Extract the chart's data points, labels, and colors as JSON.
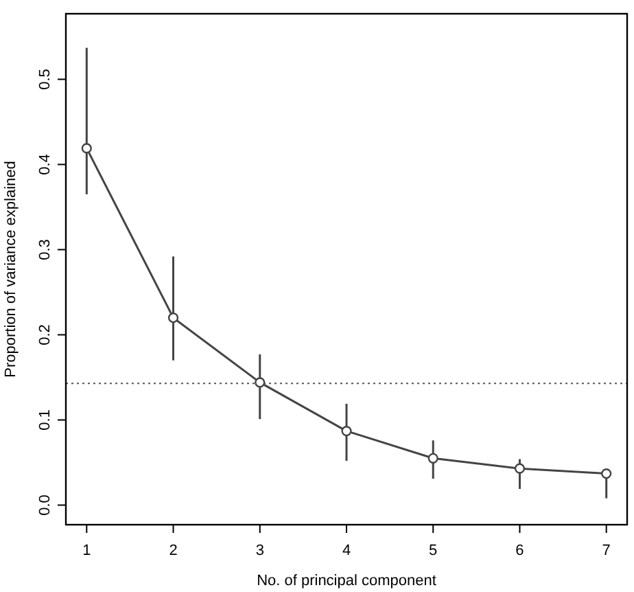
{
  "chart_data": {
    "type": "line",
    "xlabel": "No. of principal component",
    "ylabel": "Proportion of variance explained",
    "x": [
      1,
      2,
      3,
      4,
      5,
      6,
      7
    ],
    "series": [
      {
        "color": "#444444",
        "values": [
          0.419,
          0.22,
          0.144,
          0.087,
          0.055,
          0.043,
          0.037
        ],
        "errors": [
          [
            0.365,
            0.537
          ],
          [
            0.17,
            0.292
          ],
          [
            0.101,
            0.177
          ],
          [
            0.052,
            0.119
          ],
          [
            0.031,
            0.076
          ],
          [
            0.019,
            0.054
          ],
          [
            0.008,
            0.037
          ]
        ]
      }
    ],
    "marker": "circle",
    "line_style": "solid",
    "xlim": [
      0.76,
      7.24
    ],
    "xticks": [
      1,
      2,
      3,
      4,
      5,
      6,
      7
    ],
    "ylim": [
      -0.023,
      0.577
    ],
    "yticks": [
      {
        "value": 0,
        "label": "0.0"
      },
      0.1,
      0.2,
      0.3,
      0.4,
      0.5
    ],
    "ref_lines": [
      {
        "axis": "y",
        "value": 0.143,
        "line_style": "dotted",
        "color": "#555555"
      }
    ]
  }
}
